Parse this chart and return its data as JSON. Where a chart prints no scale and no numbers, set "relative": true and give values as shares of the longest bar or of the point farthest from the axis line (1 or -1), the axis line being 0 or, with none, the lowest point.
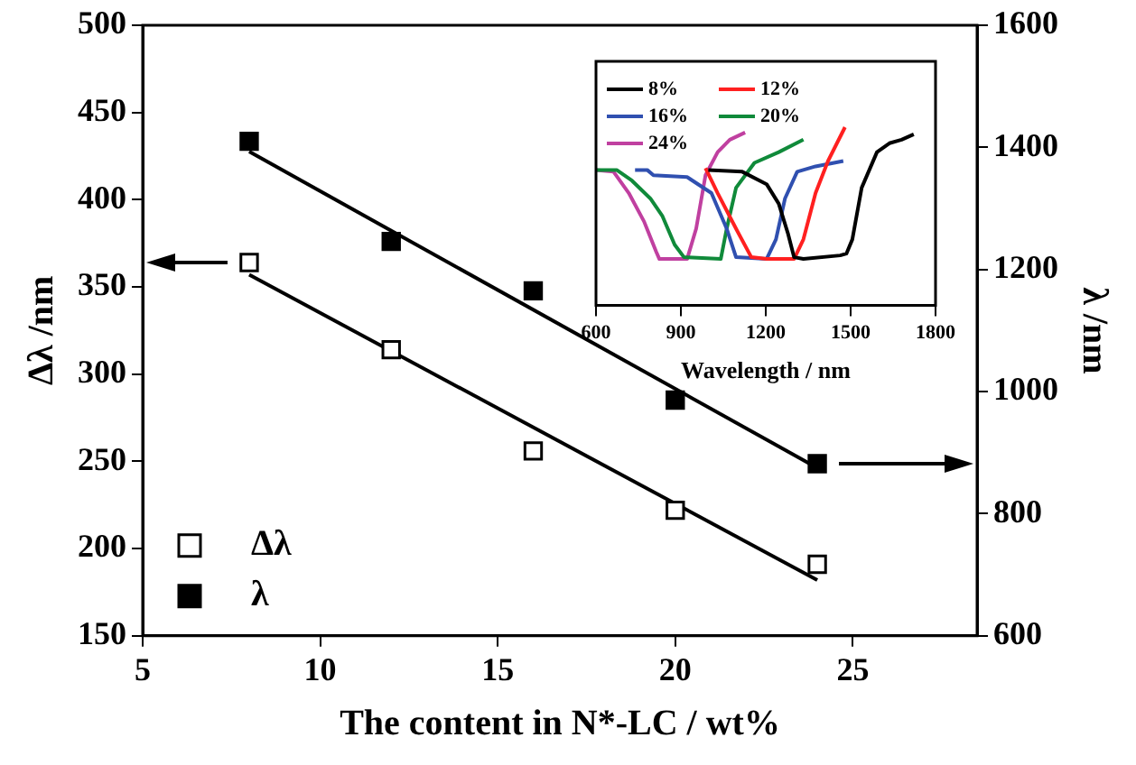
{
  "chart_data": [
    {
      "type": "scatter",
      "xlabel": "The content in N*-LC / wt%",
      "ylabel": "Δλ /nm",
      "y2label": "λ /nm",
      "xlim": [
        5,
        28.5
      ],
      "xticks": [
        5,
        10,
        15,
        20,
        25
      ],
      "ylim": [
        150,
        500
      ],
      "yticks": [
        150,
        200,
        250,
        300,
        350,
        400,
        450,
        500
      ],
      "y2lim": [
        600,
        1600
      ],
      "y2ticks": [
        600,
        800,
        1000,
        1200,
        1400,
        1600
      ],
      "legend": "bottom left",
      "series": [
        {
          "name": "Δλ",
          "color": "#ffffff",
          "marker": "square",
          "x": [
            8,
            12,
            16,
            20,
            24
          ],
          "values": [
            364,
            314,
            256,
            222,
            191
          ]
        },
        {
          "name": "λ",
          "color": "#000000",
          "marker": "square",
          "axis": "y2",
          "x": [
            8,
            12,
            16,
            20,
            24
          ],
          "values": [
            1410,
            1246,
            1165,
            986,
            882
          ]
        },
        {
          "type": "line",
          "color": "#000000",
          "x": [
            8,
            24
          ],
          "values": [
            357,
            182
          ]
        },
        {
          "type": "line",
          "color": "#000000",
          "axis": "y2",
          "x": [
            8,
            24
          ],
          "values": [
            1393,
            875
          ]
        }
      ]
    },
    {
      "type": "line",
      "xlabel": "Wavelength / nm",
      "xlim": [
        600,
        1800
      ],
      "xticks": [
        600,
        900,
        1200,
        1500,
        1800
      ],
      "relative": true,
      "tick_labels": "x",
      "legend": "top left",
      "series": [
        {
          "name": "8%",
          "color": "#000000",
          "x": [
            997,
            1117,
            1203,
            1246,
            1279,
            1300,
            1333,
            1463,
            1485,
            1506,
            1539,
            1593,
            1637,
            1680,
            1723
          ],
          "values": [
            0.76,
            0.75,
            0.68,
            0.57,
            0.4,
            0.27,
            0.26,
            0.28,
            0.29,
            0.37,
            0.66,
            0.86,
            0.91,
            0.93,
            0.96
          ]
        },
        {
          "name": "12%",
          "color": "#ff2020",
          "x": [
            987,
            1030,
            1095,
            1149,
            1203,
            1300,
            1333,
            1376,
            1420,
            1480
          ],
          "values": [
            0.77,
            0.63,
            0.43,
            0.27,
            0.26,
            0.26,
            0.37,
            0.63,
            0.81,
            1
          ]
        },
        {
          "name": "16%",
          "color": "#3050b0",
          "x": [
            738,
            781,
            803,
            922,
            1008,
            1062,
            1095,
            1203,
            1236,
            1268,
            1311,
            1376,
            1474
          ],
          "values": [
            0.76,
            0.76,
            0.73,
            0.72,
            0.63,
            0.43,
            0.27,
            0.26,
            0.37,
            0.6,
            0.75,
            0.78,
            0.81
          ]
        },
        {
          "name": "20%",
          "color": "#108a3a",
          "x": [
            600,
            673,
            727,
            792,
            835,
            878,
            911,
            1041,
            1062,
            1095,
            1160,
            1246,
            1333
          ],
          "values": [
            0.76,
            0.76,
            0.7,
            0.6,
            0.5,
            0.34,
            0.27,
            0.26,
            0.43,
            0.66,
            0.8,
            0.86,
            0.93
          ]
        },
        {
          "name": "24%",
          "color": "#c040a0",
          "x": [
            600,
            662,
            716,
            770,
            813,
            824,
            922,
            954,
            987,
            1030,
            1073,
            1127
          ],
          "values": [
            0.76,
            0.75,
            0.63,
            0.47,
            0.3,
            0.26,
            0.26,
            0.43,
            0.73,
            0.86,
            0.93,
            0.97
          ]
        }
      ]
    }
  ]
}
